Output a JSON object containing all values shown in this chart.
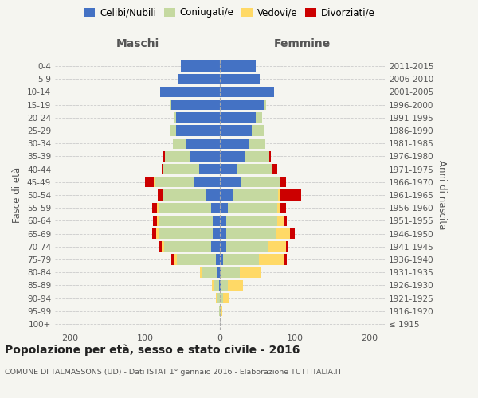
{
  "age_groups": [
    "100+",
    "95-99",
    "90-94",
    "85-89",
    "80-84",
    "75-79",
    "70-74",
    "65-69",
    "60-64",
    "55-59",
    "50-54",
    "45-49",
    "40-44",
    "35-39",
    "30-34",
    "25-29",
    "20-24",
    "15-19",
    "10-14",
    "5-9",
    "0-4"
  ],
  "birth_years": [
    "≤ 1915",
    "1916-1920",
    "1921-1925",
    "1926-1930",
    "1931-1935",
    "1936-1940",
    "1941-1945",
    "1946-1950",
    "1951-1955",
    "1956-1960",
    "1961-1965",
    "1966-1970",
    "1971-1975",
    "1976-1980",
    "1981-1985",
    "1986-1990",
    "1991-1995",
    "1996-2000",
    "2001-2005",
    "2006-2010",
    "2011-2015"
  ],
  "maschi": {
    "celibi": [
      0,
      0,
      0,
      1,
      3,
      5,
      12,
      10,
      10,
      12,
      18,
      35,
      28,
      40,
      45,
      58,
      58,
      65,
      80,
      55,
      52
    ],
    "coniugati": [
      0,
      1,
      3,
      7,
      20,
      52,
      62,
      72,
      72,
      70,
      58,
      52,
      48,
      33,
      18,
      8,
      4,
      2,
      0,
      0,
      0
    ],
    "vedovi": [
      0,
      0,
      2,
      3,
      4,
      4,
      4,
      3,
      2,
      2,
      1,
      1,
      0,
      0,
      0,
      0,
      0,
      0,
      0,
      0,
      0
    ],
    "divorziati": [
      0,
      0,
      0,
      0,
      0,
      4,
      3,
      5,
      5,
      6,
      6,
      12,
      2,
      2,
      0,
      0,
      0,
      0,
      0,
      0,
      0
    ]
  },
  "femmine": {
    "nubili": [
      0,
      0,
      0,
      2,
      2,
      4,
      8,
      8,
      9,
      11,
      18,
      28,
      22,
      33,
      38,
      42,
      48,
      58,
      72,
      53,
      48
    ],
    "coniugate": [
      0,
      1,
      4,
      9,
      25,
      48,
      57,
      67,
      67,
      65,
      60,
      52,
      48,
      33,
      23,
      18,
      8,
      4,
      0,
      0,
      0
    ],
    "vedove": [
      0,
      2,
      8,
      20,
      28,
      33,
      23,
      18,
      9,
      5,
      2,
      1,
      0,
      0,
      0,
      0,
      0,
      0,
      0,
      0,
      0
    ],
    "divorziate": [
      0,
      0,
      0,
      0,
      0,
      4,
      2,
      7,
      4,
      7,
      28,
      7,
      7,
      2,
      0,
      0,
      0,
      0,
      0,
      0,
      0
    ]
  },
  "colors": {
    "celibi_nubili": "#4472C4",
    "coniugati": "#C5D9A0",
    "vedovi": "#FFD966",
    "divorziati": "#CC0000"
  },
  "xlim": 220,
  "title": "Popolazione per età, sesso e stato civile - 2016",
  "subtitle": "COMUNE DI TALMASSONS (UD) - Dati ISTAT 1° gennaio 2016 - Elaborazione TUTTITALIA.IT",
  "ylabel_left": "Fasce di età",
  "ylabel_right": "Anni di nascita",
  "xlabel_left": "Maschi",
  "xlabel_right": "Femmine",
  "background_color": "#f5f5f0",
  "grid_color": "#cccccc"
}
